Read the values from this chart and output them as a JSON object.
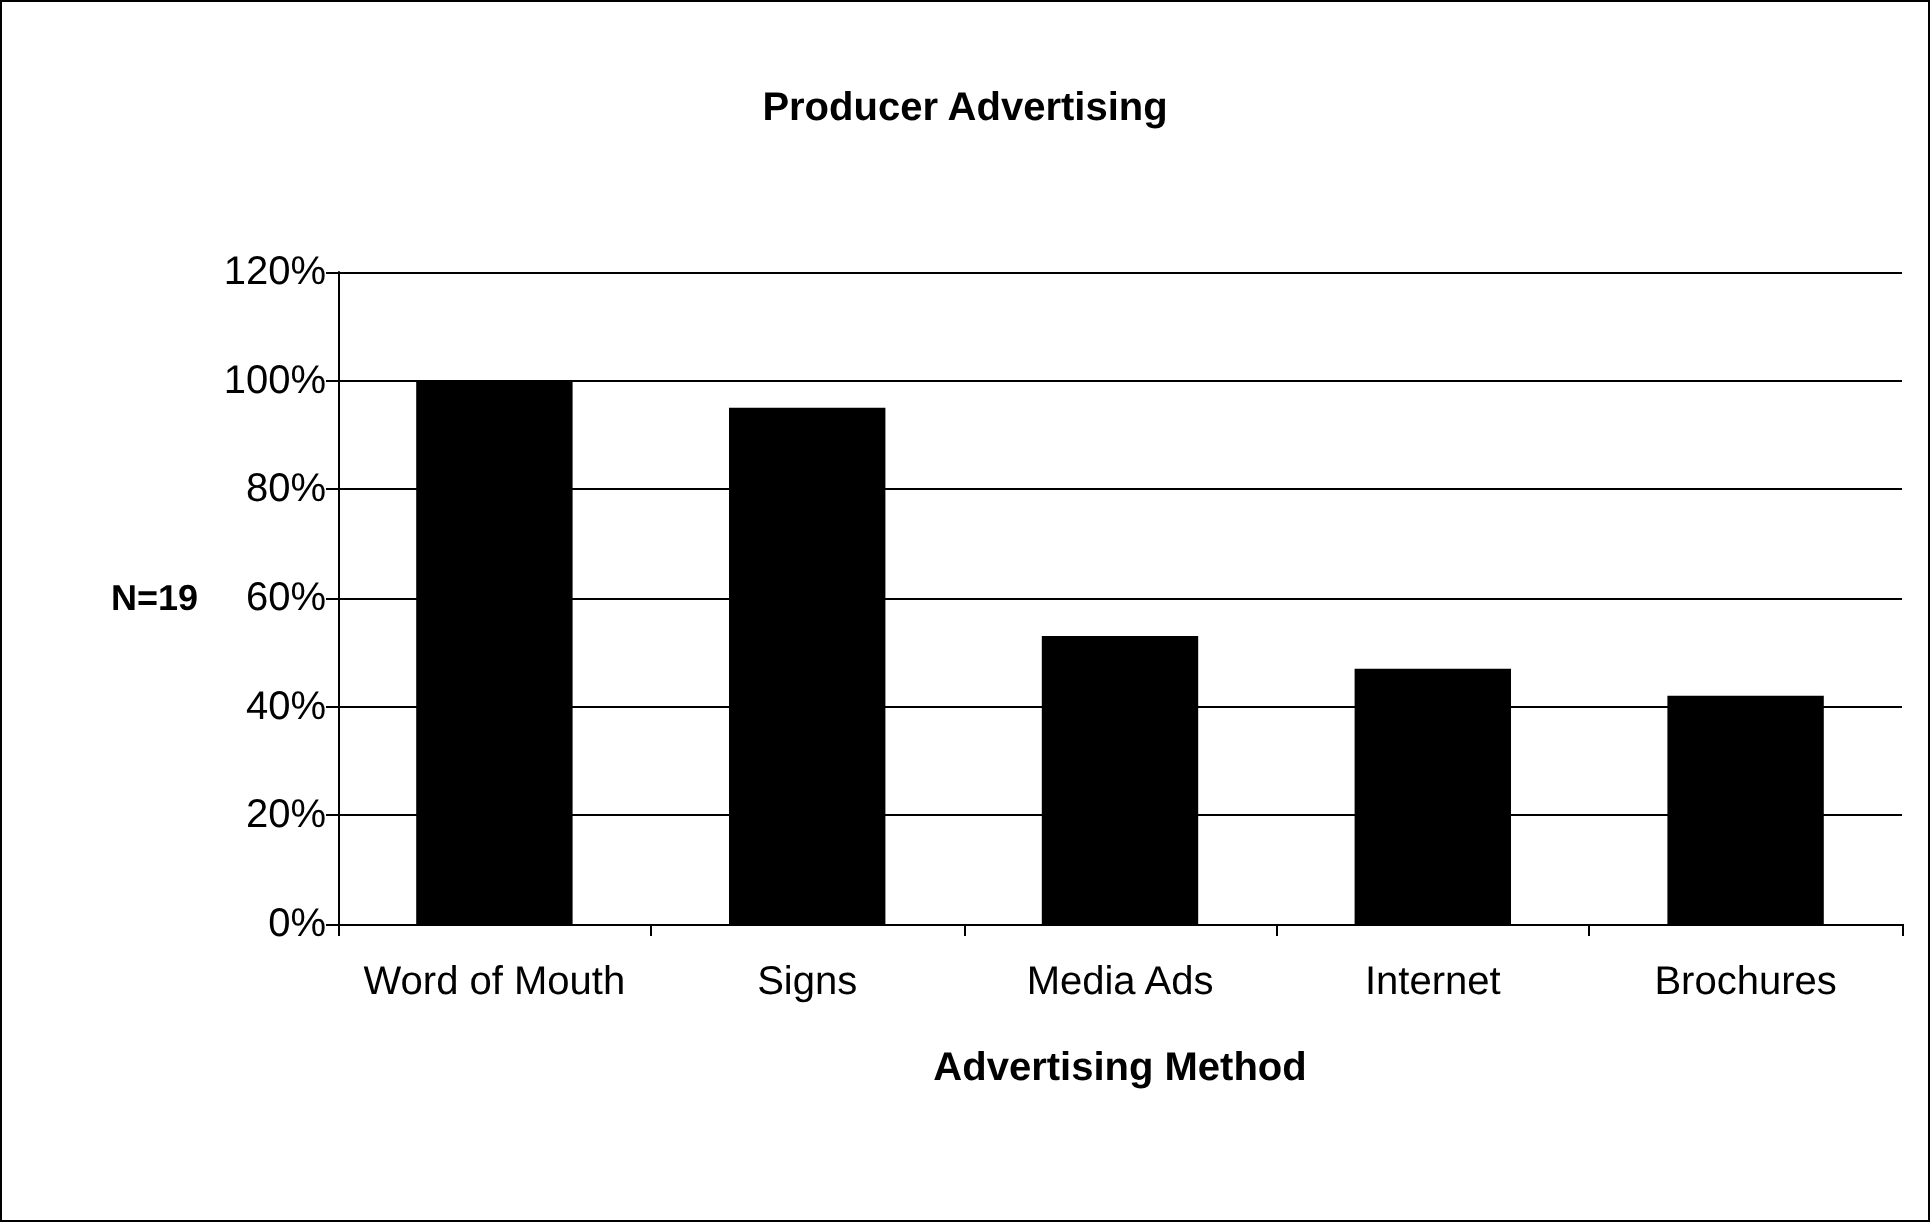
{
  "chart_data": {
    "type": "bar",
    "title": "Producer Advertising",
    "xlabel": "Advertising Method",
    "ylabel": "N=19",
    "categories": [
      "Word of Mouth",
      "Signs",
      "Media Ads",
      "Internet",
      "Brochures"
    ],
    "values": [
      100,
      95,
      53,
      47,
      42
    ],
    "color": "#000000",
    "ylim": [
      0,
      120
    ],
    "yticks": [
      {
        "value": 0,
        "label": "0%"
      },
      {
        "value": 20,
        "label": "20%"
      },
      {
        "value": 40,
        "label": "40%"
      },
      {
        "value": 60,
        "label": "60%"
      },
      {
        "value": 80,
        "label": "80%"
      },
      {
        "value": 100,
        "label": "100%"
      },
      {
        "value": 120,
        "label": "120%"
      }
    ],
    "grid": "y"
  }
}
